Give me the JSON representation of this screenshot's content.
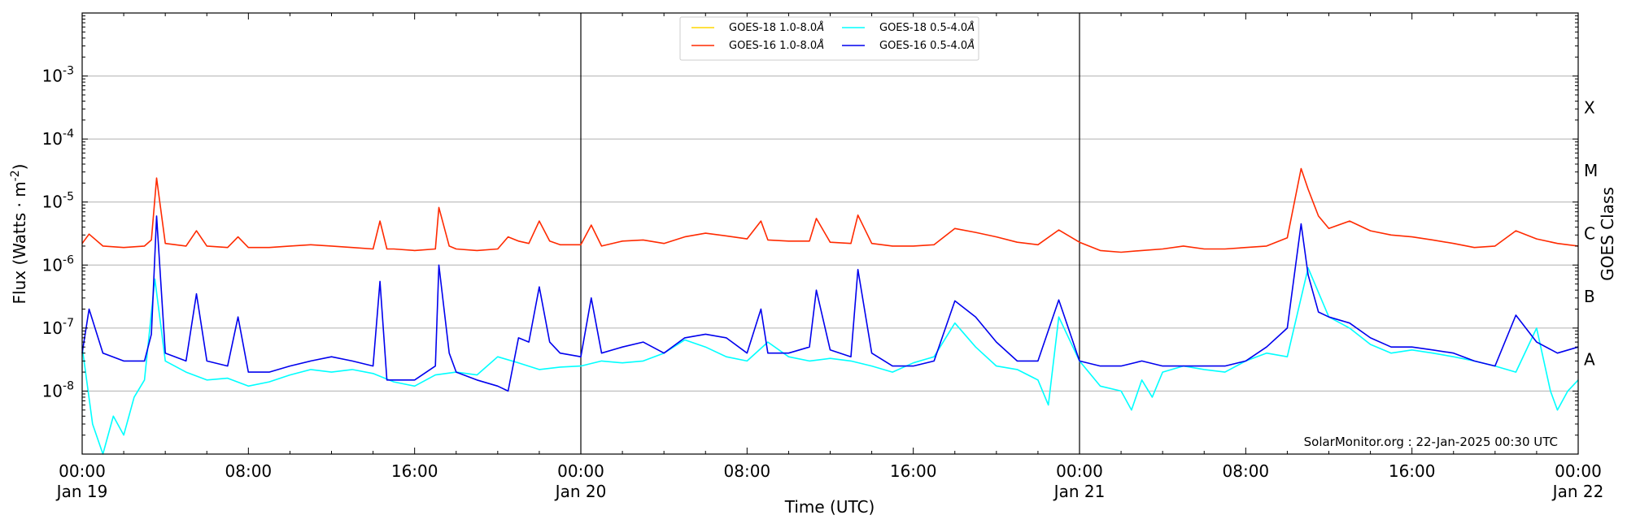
{
  "chart_data": {
    "type": "line",
    "xlabel": "Time (UTC)",
    "ylabel": "Flux (Watts · m",
    "ylabel_sup": "-2",
    "ylabel_close": ")",
    "y2label": "GOES Class",
    "yscale": "log",
    "ylim": [
      1e-09,
      0.01
    ],
    "xlim": [
      "2025-01-19 00:00",
      "2025-01-22 00:00"
    ],
    "grid": "horizontal",
    "legend_position": "top-center",
    "ytick_labels": [
      {
        "base": "10",
        "exp": "-8"
      },
      {
        "base": "10",
        "exp": "-7"
      },
      {
        "base": "10",
        "exp": "-6"
      },
      {
        "base": "10",
        "exp": "-5"
      },
      {
        "base": "10",
        "exp": "-4"
      },
      {
        "base": "10",
        "exp": "-3"
      }
    ],
    "xtick_labels": [
      {
        "time": "00:00",
        "date": "Jan 19"
      },
      {
        "time": "08:00",
        "date": ""
      },
      {
        "time": "16:00",
        "date": ""
      },
      {
        "time": "00:00",
        "date": "Jan 20"
      },
      {
        "time": "08:00",
        "date": ""
      },
      {
        "time": "16:00",
        "date": ""
      },
      {
        "time": "00:00",
        "date": "Jan 21"
      },
      {
        "time": "08:00",
        "date": ""
      },
      {
        "time": "16:00",
        "date": ""
      },
      {
        "time": "00:00",
        "date": "Jan 22"
      }
    ],
    "class_labels": [
      "A",
      "B",
      "C",
      "M",
      "X"
    ],
    "day_boundaries": [
      "2025-01-20 00:00",
      "2025-01-21 00:00"
    ],
    "credit": "SolarMonitor.org : 22-Jan-2025 00:30 UTC",
    "series": [
      {
        "name": "GOES-18 1.0-8.0",
        "name_suffix": "Å",
        "color": "#ffd700",
        "x": [],
        "y": []
      },
      {
        "name": "GOES-16 1.0-8.0",
        "name_suffix": "Å",
        "color": "#ff2a00",
        "x": [
          "2025-01-19 00:00",
          "2025-01-19 00:20",
          "2025-01-19 01:00",
          "2025-01-19 02:00",
          "2025-01-19 03:00",
          "2025-01-19 03:20",
          "2025-01-19 03:35",
          "2025-01-19 04:00",
          "2025-01-19 05:00",
          "2025-01-19 05:30",
          "2025-01-19 06:00",
          "2025-01-19 07:00",
          "2025-01-19 07:30",
          "2025-01-19 08:00",
          "2025-01-19 09:00",
          "2025-01-19 10:00",
          "2025-01-19 11:00",
          "2025-01-19 12:00",
          "2025-01-19 13:00",
          "2025-01-19 14:00",
          "2025-01-19 14:20",
          "2025-01-19 14:40",
          "2025-01-19 15:00",
          "2025-01-19 16:00",
          "2025-01-19 17:00",
          "2025-01-19 17:10",
          "2025-01-19 17:40",
          "2025-01-19 18:00",
          "2025-01-19 19:00",
          "2025-01-19 20:00",
          "2025-01-19 20:30",
          "2025-01-19 21:00",
          "2025-01-19 21:30",
          "2025-01-19 22:00",
          "2025-01-19 22:30",
          "2025-01-19 23:00",
          "2025-01-20 00:00",
          "2025-01-20 00:30",
          "2025-01-20 01:00",
          "2025-01-20 02:00",
          "2025-01-20 03:00",
          "2025-01-20 04:00",
          "2025-01-20 05:00",
          "2025-01-20 06:00",
          "2025-01-20 07:00",
          "2025-01-20 08:00",
          "2025-01-20 08:40",
          "2025-01-20 09:00",
          "2025-01-20 10:00",
          "2025-01-20 11:00",
          "2025-01-20 11:20",
          "2025-01-20 12:00",
          "2025-01-20 13:00",
          "2025-01-20 13:20",
          "2025-01-20 14:00",
          "2025-01-20 15:00",
          "2025-01-20 16:00",
          "2025-01-20 17:00",
          "2025-01-20 18:00",
          "2025-01-20 19:00",
          "2025-01-20 20:00",
          "2025-01-20 21:00",
          "2025-01-20 22:00",
          "2025-01-20 23:00",
          "2025-01-21 00:00",
          "2025-01-21 01:00",
          "2025-01-21 02:00",
          "2025-01-21 03:00",
          "2025-01-21 04:00",
          "2025-01-21 05:00",
          "2025-01-21 06:00",
          "2025-01-21 07:00",
          "2025-01-21 08:00",
          "2025-01-21 09:00",
          "2025-01-21 10:00",
          "2025-01-21 10:40",
          "2025-01-21 11:00",
          "2025-01-21 11:30",
          "2025-01-21 12:00",
          "2025-01-21 13:00",
          "2025-01-21 14:00",
          "2025-01-21 15:00",
          "2025-01-21 16:00",
          "2025-01-21 17:00",
          "2025-01-21 18:00",
          "2025-01-21 19:00",
          "2025-01-21 20:00",
          "2025-01-21 21:00",
          "2025-01-21 22:00",
          "2025-01-21 23:00",
          "2025-01-22 00:00"
        ],
        "y": [
          2.2e-06,
          3.1e-06,
          2e-06,
          1.9e-06,
          2e-06,
          2.5e-06,
          2.4e-05,
          2.2e-06,
          2e-06,
          3.5e-06,
          2e-06,
          1.9e-06,
          2.8e-06,
          1.9e-06,
          1.9e-06,
          2e-06,
          2.1e-06,
          2e-06,
          1.9e-06,
          1.8e-06,
          5e-06,
          1.8e-06,
          1.8e-06,
          1.7e-06,
          1.8e-06,
          8.2e-06,
          2e-06,
          1.8e-06,
          1.7e-06,
          1.8e-06,
          2.8e-06,
          2.4e-06,
          2.2e-06,
          5e-06,
          2.4e-06,
          2.1e-06,
          2.1e-06,
          4.3e-06,
          2e-06,
          2.4e-06,
          2.5e-06,
          2.2e-06,
          2.8e-06,
          3.2e-06,
          2.9e-06,
          2.6e-06,
          5e-06,
          2.5e-06,
          2.4e-06,
          2.4e-06,
          5.5e-06,
          2.3e-06,
          2.2e-06,
          6.2e-06,
          2.2e-06,
          2e-06,
          2e-06,
          2.1e-06,
          3.8e-06,
          3.3e-06,
          2.8e-06,
          2.3e-06,
          2.1e-06,
          3.6e-06,
          2.3e-06,
          1.7e-06,
          1.6e-06,
          1.7e-06,
          1.8e-06,
          2e-06,
          1.8e-06,
          1.8e-06,
          1.9e-06,
          2e-06,
          2.7e-06,
          3.4e-05,
          1.6e-05,
          6e-06,
          3.8e-06,
          5e-06,
          3.5e-06,
          3e-06,
          2.8e-06,
          2.5e-06,
          2.2e-06,
          1.9e-06,
          2e-06,
          3.5e-06,
          2.6e-06,
          2.2e-06,
          2e-06
        ]
      },
      {
        "name": "GOES-18 0.5-4.0",
        "name_suffix": "Å",
        "color": "#00ffff",
        "x": [
          "2025-01-19 00:00",
          "2025-01-19 00:30",
          "2025-01-19 01:00",
          "2025-01-19 01:30",
          "2025-01-19 02:00",
          "2025-01-19 02:30",
          "2025-01-19 03:00",
          "2025-01-19 03:30",
          "2025-01-19 04:00",
          "2025-01-19 05:00",
          "2025-01-19 06:00",
          "2025-01-19 07:00",
          "2025-01-19 08:00",
          "2025-01-19 09:00",
          "2025-01-19 10:00",
          "2025-01-19 11:00",
          "2025-01-19 12:00",
          "2025-01-19 13:00",
          "2025-01-19 14:00",
          "2025-01-19 15:00",
          "2025-01-19 16:00",
          "2025-01-19 17:00",
          "2025-01-19 18:00",
          "2025-01-19 19:00",
          "2025-01-19 20:00",
          "2025-01-19 21:00",
          "2025-01-19 22:00",
          "2025-01-19 23:00",
          "2025-01-20 00:00",
          "2025-01-20 01:00",
          "2025-01-20 02:00",
          "2025-01-20 03:00",
          "2025-01-20 04:00",
          "2025-01-20 05:00",
          "2025-01-20 06:00",
          "2025-01-20 07:00",
          "2025-01-20 08:00",
          "2025-01-20 09:00",
          "2025-01-20 10:00",
          "2025-01-20 11:00",
          "2025-01-20 12:00",
          "2025-01-20 13:00",
          "2025-01-20 14:00",
          "2025-01-20 15:00",
          "2025-01-20 16:00",
          "2025-01-20 17:00",
          "2025-01-20 18:00",
          "2025-01-20 19:00",
          "2025-01-20 20:00",
          "2025-01-20 21:00",
          "2025-01-20 22:00",
          "2025-01-20 22:30",
          "2025-01-20 23:00",
          "2025-01-21 00:00",
          "2025-01-21 01:00",
          "2025-01-21 02:00",
          "2025-01-21 02:30",
          "2025-01-21 03:00",
          "2025-01-21 03:30",
          "2025-01-21 04:00",
          "2025-01-21 05:00",
          "2025-01-21 06:00",
          "2025-01-21 07:00",
          "2025-01-21 08:00",
          "2025-01-21 09:00",
          "2025-01-21 10:00",
          "2025-01-21 11:00",
          "2025-01-21 12:00",
          "2025-01-21 13:00",
          "2025-01-21 14:00",
          "2025-01-21 15:00",
          "2025-01-21 16:00",
          "2025-01-21 17:00",
          "2025-01-21 18:00",
          "2025-01-21 19:00",
          "2025-01-21 20:00",
          "2025-01-21 21:00",
          "2025-01-21 22:00",
          "2025-01-21 22:40",
          "2025-01-21 23:00",
          "2025-01-21 23:30",
          "2025-01-22 00:00"
        ],
        "y": [
          5e-08,
          3e-09,
          1e-09,
          4e-09,
          2e-09,
          8e-09,
          1.5e-08,
          6e-07,
          3e-08,
          2e-08,
          1.5e-08,
          1.6e-08,
          1.2e-08,
          1.4e-08,
          1.8e-08,
          2.2e-08,
          2e-08,
          2.2e-08,
          1.9e-08,
          1.4e-08,
          1.2e-08,
          1.8e-08,
          2e-08,
          1.8e-08,
          3.5e-08,
          2.8e-08,
          2.2e-08,
          2.4e-08,
          2.5e-08,
          3e-08,
          2.8e-08,
          3e-08,
          4e-08,
          6.5e-08,
          5e-08,
          3.5e-08,
          3e-08,
          6e-08,
          3.5e-08,
          3e-08,
          3.3e-08,
          3e-08,
          2.5e-08,
          2e-08,
          2.8e-08,
          3.5e-08,
          1.2e-07,
          5e-08,
          2.5e-08,
          2.2e-08,
          1.5e-08,
          6e-09,
          1.5e-07,
          3e-08,
          1.2e-08,
          1e-08,
          5e-09,
          1.5e-08,
          8e-09,
          2e-08,
          2.5e-08,
          2.2e-08,
          2e-08,
          3e-08,
          4e-08,
          3.5e-08,
          9e-07,
          1.5e-07,
          1e-07,
          5.5e-08,
          4e-08,
          4.5e-08,
          4e-08,
          3.5e-08,
          3e-08,
          2.5e-08,
          2e-08,
          1e-07,
          1e-08,
          5e-09,
          1e-08,
          1.5e-08
        ]
      },
      {
        "name": "GOES-16 0.5-4.0",
        "name_suffix": "Å",
        "color": "#0000ee",
        "x": [
          "2025-01-19 00:00",
          "2025-01-19 00:20",
          "2025-01-19 01:00",
          "2025-01-19 02:00",
          "2025-01-19 03:00",
          "2025-01-19 03:20",
          "2025-01-19 03:35",
          "2025-01-19 04:00",
          "2025-01-19 05:00",
          "2025-01-19 05:30",
          "2025-01-19 06:00",
          "2025-01-19 07:00",
          "2025-01-19 07:30",
          "2025-01-19 08:00",
          "2025-01-19 09:00",
          "2025-01-19 10:00",
          "2025-01-19 11:00",
          "2025-01-19 12:00",
          "2025-01-19 13:00",
          "2025-01-19 14:00",
          "2025-01-19 14:20",
          "2025-01-19 14:40",
          "2025-01-19 15:00",
          "2025-01-19 16:00",
          "2025-01-19 17:00",
          "2025-01-19 17:10",
          "2025-01-19 17:40",
          "2025-01-19 18:00",
          "2025-01-19 19:00",
          "2025-01-19 20:00",
          "2025-01-19 20:30",
          "2025-01-19 21:00",
          "2025-01-19 21:30",
          "2025-01-19 22:00",
          "2025-01-19 22:30",
          "2025-01-19 23:00",
          "2025-01-20 00:00",
          "2025-01-20 00:30",
          "2025-01-20 01:00",
          "2025-01-20 02:00",
          "2025-01-20 03:00",
          "2025-01-20 04:00",
          "2025-01-20 05:00",
          "2025-01-20 06:00",
          "2025-01-20 07:00",
          "2025-01-20 08:00",
          "2025-01-20 08:40",
          "2025-01-20 09:00",
          "2025-01-20 10:00",
          "2025-01-20 11:00",
          "2025-01-20 11:20",
          "2025-01-20 12:00",
          "2025-01-20 13:00",
          "2025-01-20 13:20",
          "2025-01-20 14:00",
          "2025-01-20 15:00",
          "2025-01-20 16:00",
          "2025-01-20 17:00",
          "2025-01-20 18:00",
          "2025-01-20 19:00",
          "2025-01-20 20:00",
          "2025-01-20 21:00",
          "2025-01-20 22:00",
          "2025-01-20 23:00",
          "2025-01-21 00:00",
          "2025-01-21 01:00",
          "2025-01-21 02:00",
          "2025-01-21 03:00",
          "2025-01-21 04:00",
          "2025-01-21 05:00",
          "2025-01-21 06:00",
          "2025-01-21 07:00",
          "2025-01-21 08:00",
          "2025-01-21 09:00",
          "2025-01-21 10:00",
          "2025-01-21 10:40",
          "2025-01-21 11:00",
          "2025-01-21 11:30",
          "2025-01-21 12:00",
          "2025-01-21 13:00",
          "2025-01-21 14:00",
          "2025-01-21 15:00",
          "2025-01-21 16:00",
          "2025-01-21 17:00",
          "2025-01-21 18:00",
          "2025-01-21 19:00",
          "2025-01-21 20:00",
          "2025-01-21 21:00",
          "2025-01-21 22:00",
          "2025-01-21 23:00",
          "2025-01-22 00:00"
        ],
        "y": [
          4e-08,
          2e-07,
          4e-08,
          3e-08,
          3e-08,
          8e-08,
          6e-06,
          4e-08,
          3e-08,
          3.5e-07,
          3e-08,
          2.5e-08,
          1.5e-07,
          2e-08,
          2e-08,
          2.5e-08,
          3e-08,
          3.5e-08,
          3e-08,
          2.5e-08,
          5.5e-07,
          1.5e-08,
          1.5e-08,
          1.5e-08,
          2.5e-08,
          1e-06,
          4e-08,
          2e-08,
          1.5e-08,
          1.2e-08,
          1e-08,
          7e-08,
          6e-08,
          4.5e-07,
          6e-08,
          4e-08,
          3.5e-08,
          3e-07,
          4e-08,
          5e-08,
          6e-08,
          4e-08,
          7e-08,
          8e-08,
          7e-08,
          4e-08,
          2e-07,
          4e-08,
          4e-08,
          5e-08,
          4e-07,
          4.5e-08,
          3.5e-08,
          8.5e-07,
          4e-08,
          2.5e-08,
          2.5e-08,
          3e-08,
          2.7e-07,
          1.5e-07,
          6e-08,
          3e-08,
          3e-08,
          2.8e-07,
          3e-08,
          2.5e-08,
          2.5e-08,
          3e-08,
          2.5e-08,
          2.5e-08,
          2.5e-08,
          2.5e-08,
          3e-08,
          5e-08,
          1e-07,
          4.5e-06,
          7e-07,
          1.8e-07,
          1.5e-07,
          1.2e-07,
          7e-08,
          5e-08,
          5e-08,
          4.5e-08,
          4e-08,
          3e-08,
          2.5e-08,
          1.6e-07,
          6e-08,
          4e-08,
          5e-08
        ]
      }
    ]
  }
}
